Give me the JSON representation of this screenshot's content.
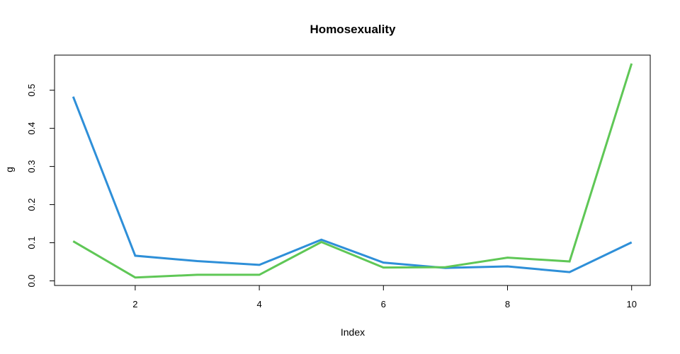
{
  "chart_data": {
    "type": "line",
    "title": "Homosexuality",
    "xlabel": "Index",
    "ylabel": "g",
    "xlim": [
      0.7,
      10.3
    ],
    "ylim": [
      -0.012,
      0.592
    ],
    "x": [
      1,
      2,
      3,
      4,
      5,
      6,
      7,
      8,
      9,
      10
    ],
    "xticks": [
      2,
      4,
      6,
      8,
      10
    ],
    "xtick_labels": [
      "2",
      "4",
      "6",
      "8",
      "10"
    ],
    "yticks": [
      0,
      0.1,
      0.2,
      0.3,
      0.4,
      0.5
    ],
    "ytick_labels": [
      "0.0",
      "0.1",
      "0.2",
      "0.3",
      "0.4",
      "0.5"
    ],
    "grid": false,
    "series": [
      {
        "color": "#2e8fd8",
        "values": [
          0.483,
          0.066,
          0.052,
          0.042,
          0.108,
          0.048,
          0.034,
          0.038,
          0.023,
          0.101
        ]
      },
      {
        "color": "#5fc756",
        "values": [
          0.104,
          0.009,
          0.016,
          0.016,
          0.102,
          0.035,
          0.036,
          0.061,
          0.051,
          0.57
        ]
      }
    ]
  }
}
